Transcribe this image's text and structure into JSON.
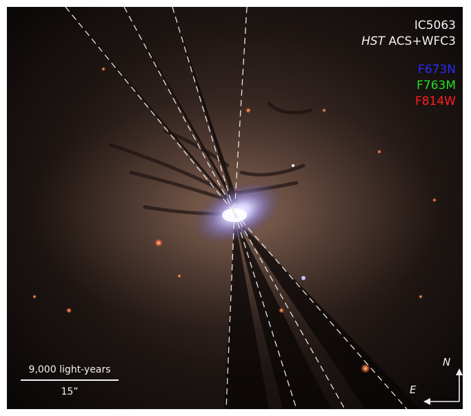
{
  "image": {
    "object_name": "IC5063",
    "instrument_prefix": "HST",
    "instrument_suffix": " ACS+WFC3",
    "filters": [
      {
        "name": "F673N",
        "color": "#2b2bff"
      },
      {
        "name": "F763M",
        "color": "#22e022"
      },
      {
        "name": "F814W",
        "color": "#ff2020"
      }
    ],
    "scalebar": {
      "top_label": "9,000 light-years",
      "bottom_label": "15”"
    },
    "compass": {
      "north_label": "N",
      "east_label": "E"
    }
  }
}
